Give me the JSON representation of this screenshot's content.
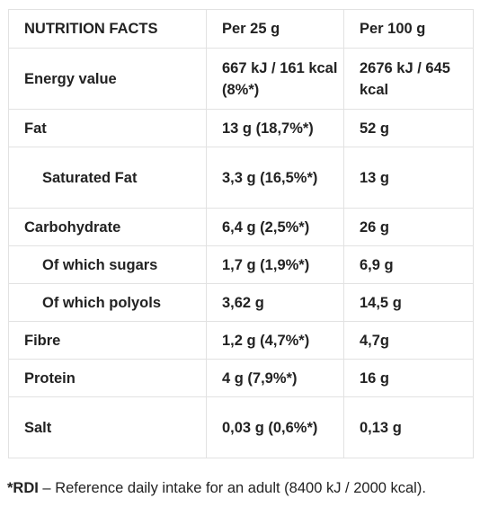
{
  "table": {
    "header": [
      "NUTRITION FACTS",
      "Per 25 g",
      "Per 100 g"
    ],
    "rows": [
      {
        "label": "Energy value",
        "per25": "667 kJ / 161 kcal (8%*)",
        "per100": "2676 kJ / 645 kcal"
      },
      {
        "label": "Fat",
        "per25": "13 g (18,7%*)",
        "per100": "52 g"
      },
      {
        "label": "Saturated Fat",
        "per25": "3,3 g (16,5%*)",
        "per100": "13 g"
      },
      {
        "label": "Carbohydrate",
        "per25": "6,4 g (2,5%*)",
        "per100": "26 g"
      },
      {
        "label": "Of which sugars",
        "per25": "1,7 g (1,9%*)",
        "per100": "6,9 g"
      },
      {
        "label": "Of which polyols",
        "per25": "3,62 g",
        "per100": "14,5 g"
      },
      {
        "label": "Fibre",
        "per25": "1,2 g (4,7%*)",
        "per100": "4,7g"
      },
      {
        "label": "Protein",
        "per25": "4 g (7,9%*)",
        "per100": "16 g"
      },
      {
        "label": "Salt",
        "per25": "0,03 g (0,6%*)",
        "per100": "0,13 g"
      }
    ]
  },
  "footnote": {
    "marker": "*RDI",
    "text": " – Reference daily intake for an adult (8400 kJ / 2000 kcal)."
  }
}
